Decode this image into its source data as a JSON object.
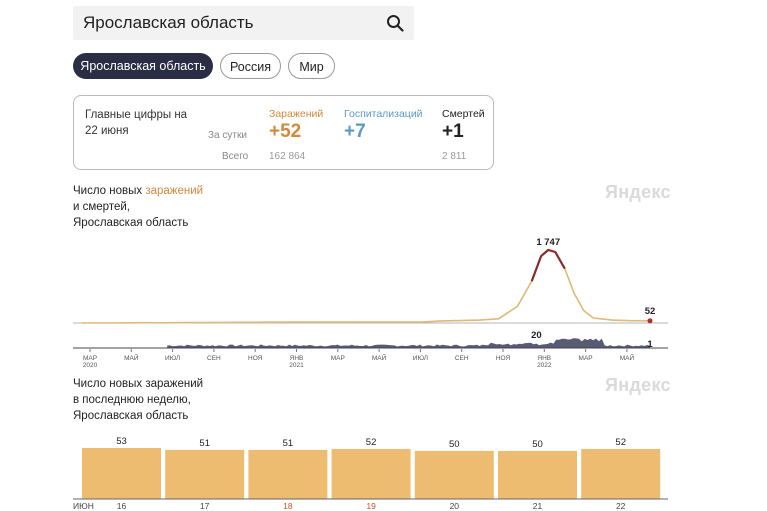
{
  "search": {
    "value": "Ярославская область"
  },
  "tabs": [
    {
      "label": "Ярославская область",
      "active": true
    },
    {
      "label": "Россия",
      "active": false
    },
    {
      "label": "Мир",
      "active": false
    }
  ],
  "summary": {
    "title_line1": "Главные цифры на",
    "title_line2": "22 июня",
    "row_daily_label": "За сутки",
    "row_total_label": "Всего",
    "columns": [
      {
        "header": "Заражений",
        "daily": "+52",
        "total": "162 864",
        "color": "#d3893c"
      },
      {
        "header": "Госпитализаций",
        "daily": "+7",
        "total": "",
        "color": "#5a9ac5"
      },
      {
        "header": "Смертей",
        "daily": "+1",
        "total": "2 811",
        "color": "#222222"
      }
    ]
  },
  "watermark": "Яндекс",
  "chart_data": [
    {
      "type": "line",
      "title_part1": "Число новых ",
      "title_accent": "заражений",
      "title_line2": "и смертей,",
      "title_line3": "Ярославская область",
      "series_infections": {
        "color": "#e0b877",
        "peak_color": "#8b2a2a",
        "points": [
          [
            0,
            0
          ],
          [
            6,
            0
          ],
          [
            11,
            4
          ],
          [
            14,
            8
          ],
          [
            17,
            5
          ],
          [
            22,
            10
          ],
          [
            30,
            14
          ],
          [
            38,
            18
          ],
          [
            44,
            22
          ],
          [
            50,
            24
          ],
          [
            56,
            23
          ],
          [
            62,
            22
          ],
          [
            68,
            22
          ],
          [
            72,
            26
          ],
          [
            76,
            50
          ],
          [
            80,
            58
          ],
          [
            84,
            70
          ],
          [
            88,
            100
          ],
          [
            92,
            400
          ],
          [
            95,
            1000
          ],
          [
            97,
            1600
          ],
          [
            98.5,
            1747
          ],
          [
            100,
            1700
          ],
          [
            102,
            1300
          ],
          [
            104,
            700
          ],
          [
            106,
            300
          ],
          [
            108,
            120
          ],
          [
            112,
            70
          ],
          [
            116,
            55
          ],
          [
            120,
            52
          ]
        ],
        "peak_label": "1 747",
        "end_label": "52"
      },
      "series_deaths": {
        "color": "#3a3f5c",
        "peak_label": "20",
        "end_label": "1"
      },
      "x_ticks": [
        {
          "label": "МАР",
          "year": "2020"
        },
        {
          "label": "МАЙ",
          "year": ""
        },
        {
          "label": "ИЮЛ",
          "year": ""
        },
        {
          "label": "СЕН",
          "year": ""
        },
        {
          "label": "НОЯ",
          "year": ""
        },
        {
          "label": "ЯНВ",
          "year": "2021"
        },
        {
          "label": "МАР",
          "year": ""
        },
        {
          "label": "МАЙ",
          "year": ""
        },
        {
          "label": "ИЮЛ",
          "year": ""
        },
        {
          "label": "СЕН",
          "year": ""
        },
        {
          "label": "НОЯ",
          "year": ""
        },
        {
          "label": "ЯНВ",
          "year": "2022"
        },
        {
          "label": "МАР",
          "year": ""
        },
        {
          "label": "МАЙ",
          "year": ""
        }
      ]
    },
    {
      "type": "bar",
      "title_line1": "Число новых заражений",
      "title_line2": "в последнюю неделю,",
      "title_line3": "Ярославская область",
      "month_label": "ИЮН",
      "categories": [
        "16",
        "17",
        "18",
        "19",
        "20",
        "21",
        "22"
      ],
      "weekend": [
        false,
        false,
        true,
        true,
        false,
        false,
        false
      ],
      "values": [
        53,
        51,
        51,
        52,
        50,
        50,
        52
      ],
      "bar_color": "#edbc71",
      "weekend_color": "#c8551e"
    }
  ]
}
